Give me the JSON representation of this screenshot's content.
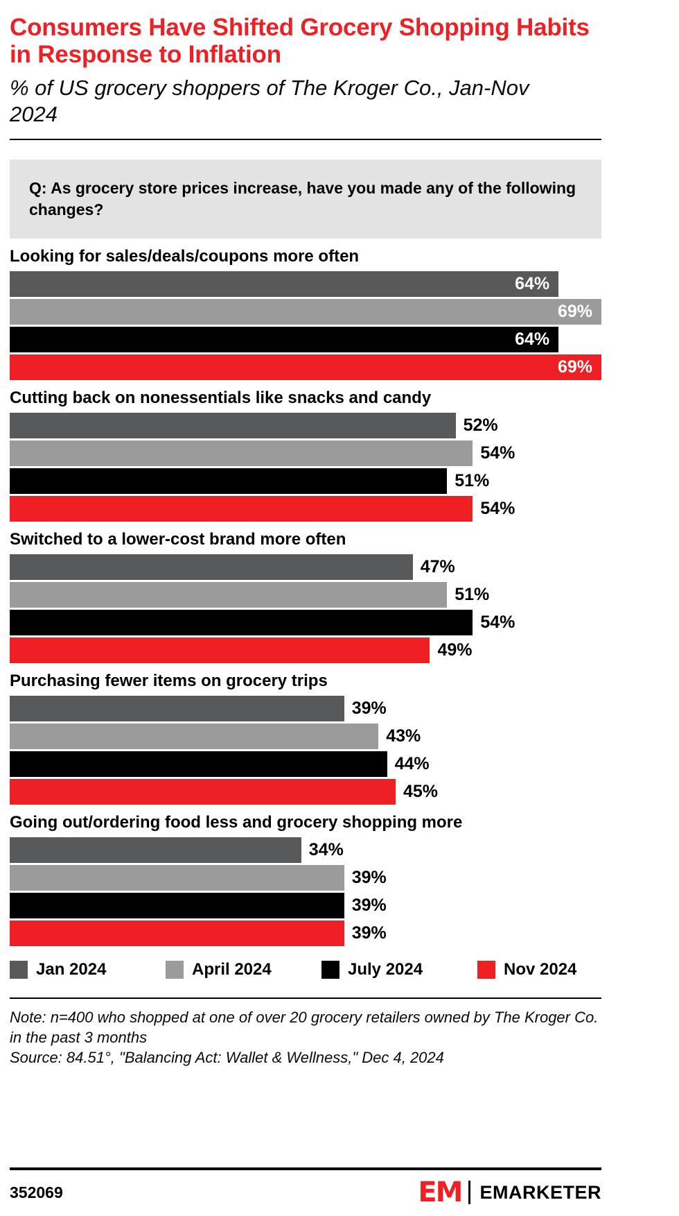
{
  "title": "Consumers Have Shifted Grocery Shopping Habits in Response to Inflation",
  "subtitle": "% of US grocery shoppers of The Kroger Co., Jan-Nov 2024",
  "question": "Q: As grocery store prices increase, have you made any of the following changes?",
  "chart_data": {
    "type": "bar",
    "orientation": "horizontal",
    "unit": "%",
    "xlim": [
      0,
      69
    ],
    "grid": false,
    "legend_position": "bottom",
    "series": [
      "Jan 2024",
      "April 2024",
      "July 2024",
      "Nov 2024"
    ],
    "series_colors": [
      "#58595B",
      "#9B9B9B",
      "#000000",
      "#ED2024"
    ],
    "categories": [
      {
        "label": "Looking for sales/deals/coupons more often",
        "values": [
          64,
          69,
          64,
          69
        ]
      },
      {
        "label": "Cutting back on nonessentials like snacks and candy",
        "values": [
          52,
          54,
          51,
          54
        ]
      },
      {
        "label": "Switched to a lower-cost brand more often",
        "values": [
          47,
          51,
          54,
          49
        ]
      },
      {
        "label": "Purchasing fewer items on grocery trips",
        "values": [
          39,
          43,
          44,
          45
        ]
      },
      {
        "label": "Going out/ordering food less and grocery shopping more",
        "values": [
          34,
          39,
          39,
          39
        ]
      }
    ]
  },
  "note": "Note: n=400 who shopped at one of over 20 grocery retailers owned by The Kroger Co. in the past 3 months",
  "source": "Source: 84.51°, \"Balancing Act: Wallet & Wellness,\" Dec 4, 2024",
  "footer": {
    "chart_id": "352069",
    "logo_text": "EM",
    "brand": "EMARKETER"
  },
  "colors": {
    "accent_red": "#ED2024",
    "dark_gray": "#58595B",
    "light_gray": "#9B9B9B",
    "black": "#000000",
    "question_bg": "#E3E3E3"
  }
}
